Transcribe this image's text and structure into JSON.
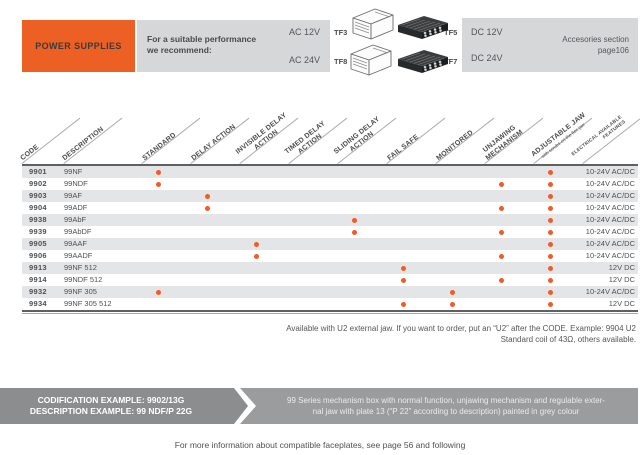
{
  "top": {
    "power_supplies_label": "POWER SUPPLIES",
    "recommend_line1": "For a suitable performance",
    "recommend_line2": "we recommend:",
    "ac12": "AC 12V",
    "ac24": "AC 24V",
    "tf3": "TF3",
    "tf8": "TF8",
    "tf5": "TF5",
    "tf7": "TF7",
    "dc12": "DC 12V",
    "dc24": "DC 24V",
    "accessories_line1": "Accesories section",
    "accessories_line2": "page106"
  },
  "table": {
    "code_header": "CODE",
    "description_header": "DESCRIPTION",
    "columns": [
      {
        "id": "standard",
        "lines": [
          "STANDARD"
        ]
      },
      {
        "id": "delay_action",
        "lines": [
          "DELAY ACTION"
        ]
      },
      {
        "id": "invisible_delay_action",
        "lines": [
          "INVISIBLE DELAY",
          "ACTION"
        ]
      },
      {
        "id": "timed_delay_action",
        "lines": [
          "TIMED DELAY",
          "ACTION"
        ]
      },
      {
        "id": "sliding_delay_action",
        "lines": [
          "SLIDING DELAY",
          "ACTION"
        ]
      },
      {
        "id": "fail_safe",
        "lines": [
          "FAIL SAFE"
        ]
      },
      {
        "id": "monitored",
        "lines": [
          "MONITORED"
        ]
      },
      {
        "id": "unjawing_mechanism",
        "lines": [
          "UNJAWING",
          "MECHANISM"
        ]
      },
      {
        "id": "adjustable_jaw",
        "lines": [
          "ADJUSTABLE JAW"
        ],
        "sub": "with scrubs on the flex jaw"
      },
      {
        "id": "electrical_features",
        "lines": [
          "ELECTRICAL AVAILABLE",
          "FEATURES"
        ],
        "small": true
      }
    ],
    "rows": [
      {
        "code": "9901",
        "description": "99NF",
        "dots": [
          "standard",
          "adjustable_jaw"
        ],
        "voltage": "10-24V AC/DC"
      },
      {
        "code": "9902",
        "description": "99NDF",
        "dots": [
          "standard",
          "unjawing_mechanism",
          "adjustable_jaw"
        ],
        "voltage": "10-24V AC/DC"
      },
      {
        "code": "9903",
        "description": "99AF",
        "dots": [
          "delay_action",
          "adjustable_jaw"
        ],
        "voltage": "10-24V AC/DC"
      },
      {
        "code": "9904",
        "description": "99ADF",
        "dots": [
          "delay_action",
          "unjawing_mechanism",
          "adjustable_jaw"
        ],
        "voltage": "10-24V AC/DC"
      },
      {
        "code": "9938",
        "description": "99AbF",
        "dots": [
          "sliding_delay_action",
          "adjustable_jaw"
        ],
        "voltage": "10-24V AC/DC"
      },
      {
        "code": "9939",
        "description": "99AbDF",
        "dots": [
          "sliding_delay_action",
          "unjawing_mechanism",
          "adjustable_jaw"
        ],
        "voltage": "10-24V AC/DC"
      },
      {
        "code": "9905",
        "description": "99AAF",
        "dots": [
          "invisible_delay_action",
          "adjustable_jaw"
        ],
        "voltage": "10-24V AC/DC"
      },
      {
        "code": "9906",
        "description": "99AADF",
        "dots": [
          "invisible_delay_action",
          "unjawing_mechanism",
          "adjustable_jaw"
        ],
        "voltage": "10-24V AC/DC"
      },
      {
        "code": "9913",
        "description": "99NF 512",
        "dots": [
          "fail_safe",
          "adjustable_jaw"
        ],
        "voltage": "12V DC"
      },
      {
        "code": "9914",
        "description": "99NDF 512",
        "dots": [
          "fail_safe",
          "unjawing_mechanism",
          "adjustable_jaw"
        ],
        "voltage": "12V DC"
      },
      {
        "code": "9932",
        "description": "99NF 305",
        "dots": [
          "standard",
          "monitored",
          "adjustable_jaw"
        ],
        "voltage": "10-24V AC/DC"
      },
      {
        "code": "9934",
        "description": "99NF 305 512",
        "dots": [
          "fail_safe",
          "monitored",
          "adjustable_jaw"
        ],
        "voltage": "12V DC"
      }
    ]
  },
  "notes": {
    "line1": "Available with U2 external jaw. If you want to order, put an “U2” after the CODE. Example: 9904 U2",
    "line2": "Standard coil of 43Ω, others available."
  },
  "codification": {
    "left_line1": "CODIFICATION EXAMPLE: 9902/13G",
    "left_line2": "DESCRIPTION EXAMPLE: 99 NDF/P 22G",
    "right_line1": "99 Series mechanism box with normal function, unjawing mechanism and regulable exter-",
    "right_line2": "nal jaw with plate 13 (“P 22” according to description) painted in grey colour"
  },
  "footer": {
    "text": "For more information about compatible faceplates, see page 56 and following"
  },
  "colors": {
    "orange": "#ED6023",
    "dot_orange": "#F15B26",
    "panel_gray": "#D6D7D9",
    "row_stripe_gray": "#E4E5E7",
    "bar_left_gray": "#8C8D8F",
    "bar_right_gray": "#9B9C9E"
  }
}
